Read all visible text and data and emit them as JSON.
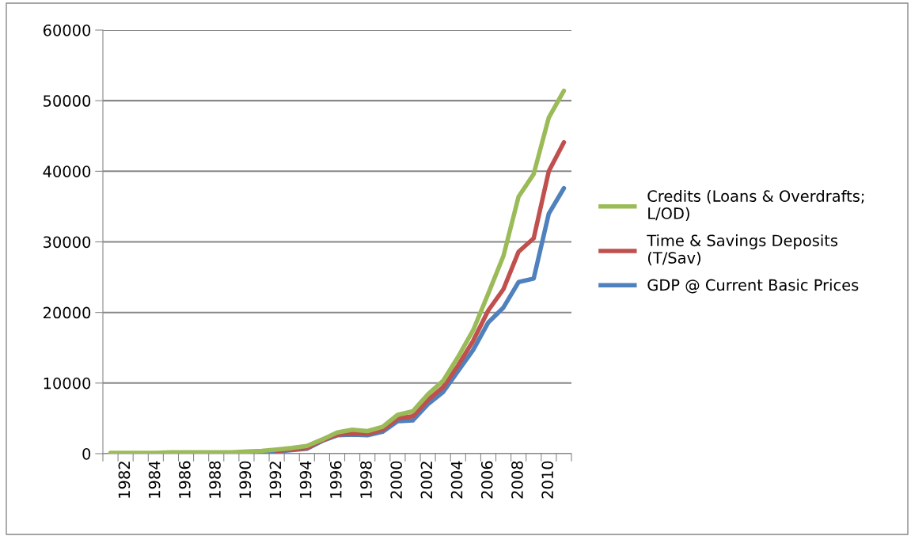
{
  "chart_data": {
    "type": "line",
    "categories": [
      null,
      "1982",
      null,
      "1984",
      null,
      "1986",
      null,
      "1988",
      null,
      "1990",
      null,
      "1992",
      null,
      "1994",
      null,
      "1996",
      null,
      "1998",
      null,
      "2000",
      null,
      "2002",
      null,
      "2004",
      null,
      "2006",
      null,
      "2008",
      null,
      "2010",
      null
    ],
    "series": [
      {
        "name": "Credits (Loans & Overdrafts; L/OD)",
        "color": "#9bbb59",
        "values": [
          100,
          100,
          100,
          100,
          200,
          200,
          200,
          200,
          200,
          300,
          400,
          600,
          800,
          1100,
          2000,
          3000,
          3400,
          3200,
          3800,
          5500,
          6000,
          8400,
          10300,
          13700,
          17500,
          22700,
          28000,
          36400,
          39600,
          47600,
          51400
        ]
      },
      {
        "name": "Time & Savings Deposits (T/Sav)",
        "color": "#c0504d",
        "values": [
          null,
          null,
          null,
          null,
          null,
          null,
          null,
          null,
          null,
          null,
          null,
          400,
          600,
          800,
          1900,
          2700,
          2900,
          2800,
          3400,
          5000,
          5300,
          7600,
          9400,
          12500,
          16000,
          20300,
          23300,
          28600,
          30500,
          40000,
          44100
        ]
      },
      {
        "name": "GDP @ Current Basic Prices",
        "color": "#4f81bd",
        "values": [
          null,
          null,
          null,
          null,
          null,
          null,
          null,
          null,
          null,
          200,
          200,
          300,
          500,
          700,
          1800,
          2600,
          2700,
          2600,
          3100,
          4600,
          4700,
          7000,
          8700,
          11700,
          14700,
          18600,
          20700,
          24300,
          24800,
          34000,
          37600
        ]
      }
    ],
    "ylim": [
      0,
      60000
    ],
    "yticks": [
      0,
      10000,
      20000,
      30000,
      40000,
      50000,
      60000
    ],
    "grid": "y",
    "legend": "right",
    "marker": "none",
    "line_style": "solid"
  }
}
